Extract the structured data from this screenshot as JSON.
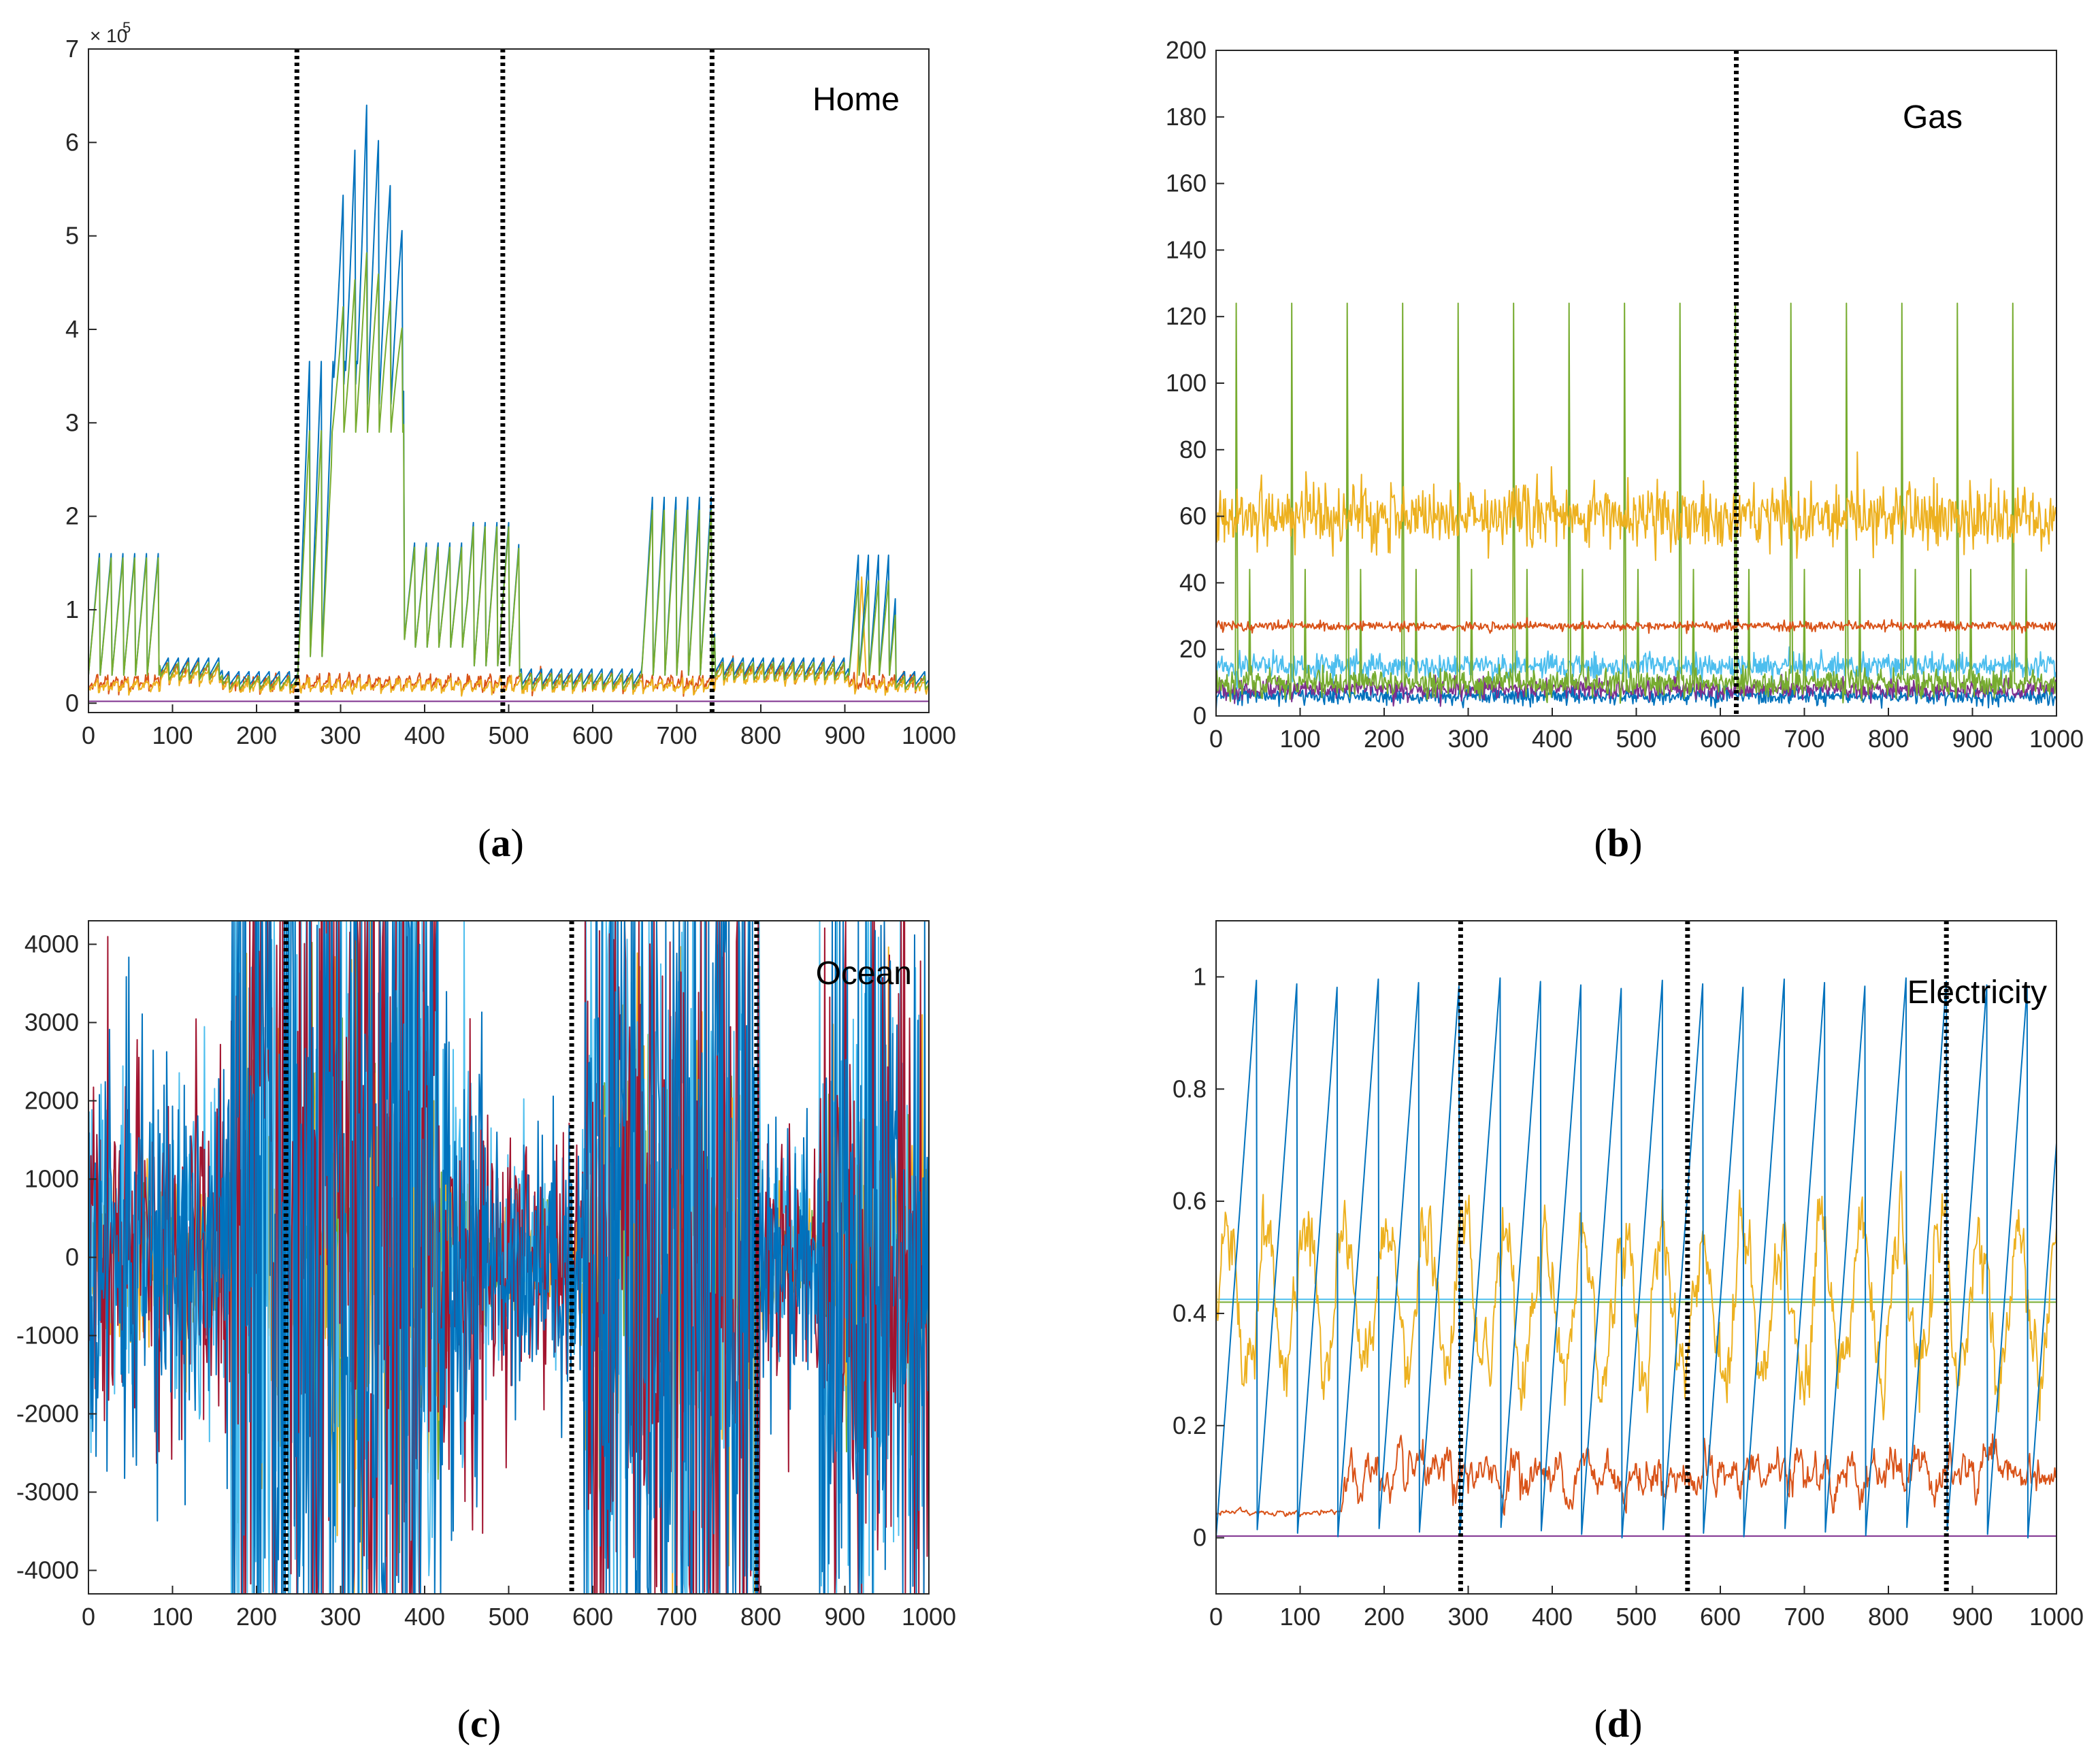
{
  "colors": {
    "blue": "#0072BD",
    "orange": "#D95319",
    "yellow": "#EDB120",
    "purple": "#7E2F8E",
    "green": "#77AC30",
    "cyan": "#4DBEEE",
    "red": "#A2142F",
    "axis": "#262626",
    "boundary": "#000000"
  },
  "chart_data": [
    {
      "id": "a",
      "type": "line",
      "title": "Home",
      "caption": "a",
      "xlim": [
        0,
        1000
      ],
      "ylim": [
        -0.1,
        7
      ],
      "xticks": [
        "0",
        "100",
        "200",
        "300",
        "400",
        "500",
        "600",
        "700",
        "800",
        "900",
        "1000"
      ],
      "yticks": [
        "0",
        "1",
        "2",
        "3",
        "4",
        "5",
        "6",
        "7"
      ],
      "y_exponent_base": "× 10",
      "y_exponent_power": "5",
      "boundaries": [
        248,
        493,
        742
      ],
      "series": [
        {
          "name": "series-1",
          "color": "#0072BD",
          "description": "sawtooth peaks ~1.7 (0–85), ~3.9–6.7 (260–370), ~1.8–2.1 (370–510), ~2.3 (660–745), ~1.7 (905–960)"
        },
        {
          "name": "series-2",
          "color": "#77AC30",
          "description": "follows series-1 slightly lower, peaks ~5.0 (330–370)"
        },
        {
          "name": "series-3",
          "color": "#D95319",
          "description": "low level ~0.1–0.5"
        },
        {
          "name": "series-4",
          "color": "#EDB120",
          "description": "low level ~0.1–0.4, spike ~1.35 near 920"
        },
        {
          "name": "series-5",
          "color": "#7E2F8E",
          "description": "flat ~0.0"
        }
      ]
    },
    {
      "id": "b",
      "type": "line",
      "title": "Gas",
      "caption": "b",
      "xlim": [
        0,
        1000
      ],
      "ylim": [
        0,
        200
      ],
      "xticks": [
        "0",
        "100",
        "200",
        "300",
        "400",
        "500",
        "600",
        "700",
        "800",
        "900",
        "1000"
      ],
      "yticks": [
        "0",
        "20",
        "40",
        "60",
        "80",
        "100",
        "120",
        "140",
        "160",
        "180",
        "200"
      ],
      "boundaries": [
        619
      ],
      "series": [
        {
          "name": "series-1",
          "color": "#77AC30",
          "description": "spikes to ~124 every ~65 samples, secondary spikes ~44, baseline ~10"
        },
        {
          "name": "series-2",
          "color": "#EDB120",
          "description": "noisy around 60 (range 52–75)"
        },
        {
          "name": "series-3",
          "color": "#D95319",
          "description": "around 27"
        },
        {
          "name": "series-4",
          "color": "#4DBEEE",
          "description": "around 15"
        },
        {
          "name": "series-5",
          "color": "#0072BD",
          "description": "around 6"
        },
        {
          "name": "series-6",
          "color": "#7E2F8E",
          "description": "around 8"
        }
      ]
    },
    {
      "id": "c",
      "type": "line",
      "title": "Ocean",
      "caption": "c",
      "xlim": [
        0,
        1000
      ],
      "ylim": [
        -4300,
        4300
      ],
      "xticks": [
        "0",
        "100",
        "200",
        "300",
        "400",
        "500",
        "600",
        "700",
        "800",
        "900",
        "1000"
      ],
      "yticks": [
        "-4000",
        "-3000",
        "-2000",
        "-1000",
        "0",
        "1000",
        "2000",
        "3000",
        "4000"
      ],
      "boundaries": [
        235,
        575,
        795
      ],
      "series": [
        {
          "name": "series-1",
          "color": "#0072BD",
          "description": "oscillation ±4000 with high-energy bursts 170–420 and 590–800"
        },
        {
          "name": "series-2",
          "color": "#A2142F",
          "description": "oscillation ±4000"
        },
        {
          "name": "series-3",
          "color": "#4DBEEE",
          "description": "oscillation ±4000"
        },
        {
          "name": "series-4",
          "color": "#EDB120",
          "description": "sparse bursts"
        },
        {
          "name": "series-5",
          "color": "#77AC30",
          "description": "sparse bursts"
        }
      ]
    },
    {
      "id": "d",
      "type": "line",
      "title": "Electricity",
      "caption": "d",
      "xlim": [
        0,
        1000
      ],
      "ylim": [
        -0.1,
        1.1
      ],
      "xticks": [
        "0",
        "100",
        "200",
        "300",
        "400",
        "500",
        "600",
        "700",
        "800",
        "900",
        "1000"
      ],
      "yticks": [
        "0",
        "0.2",
        "0.4",
        "0.6",
        "0.8",
        "1"
      ],
      "boundaries": [
        291,
        561,
        869
      ],
      "series": [
        {
          "name": "series-1",
          "color": "#0072BD",
          "description": "sawtooth 0 to 1, period ~48"
        },
        {
          "name": "series-2",
          "color": "#EDB120",
          "description": "wavy 0.2–0.6"
        },
        {
          "name": "series-3",
          "color": "#D95319",
          "description": "0.04 rising to 0.05–0.2 after 150"
        },
        {
          "name": "series-4",
          "color": "#77AC30",
          "description": "flat 0.42"
        },
        {
          "name": "series-5",
          "color": "#4DBEEE",
          "description": "flat 0.425"
        },
        {
          "name": "series-6",
          "color": "#7E2F8E",
          "description": "flat 0.0"
        }
      ]
    }
  ]
}
